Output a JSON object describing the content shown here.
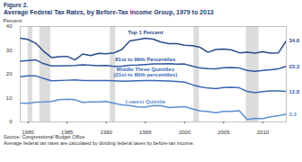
{
  "chart_data": {
    "type": "line",
    "figure": "Figure 2.",
    "title": "Average Federal Tax Rates, by Before-Tax Income Group, 1979 to 2013",
    "ylabel": "Percent",
    "source": "Source: Congressional Budget Office.",
    "note": "Average federal tax rates are calculated by dividing federal taxes by before-tax income.",
    "x": [
      1979,
      1980,
      1981,
      1982,
      1983,
      1984,
      1985,
      1986,
      1987,
      1988,
      1989,
      1990,
      1991,
      1992,
      1993,
      1994,
      1995,
      1996,
      1997,
      1998,
      1999,
      2000,
      2001,
      2002,
      2003,
      2004,
      2005,
      2006,
      2007,
      2008,
      2009,
      2010,
      2011,
      2012,
      2013
    ],
    "xlim": [
      1979,
      2013
    ],
    "xticks": [
      1980,
      1985,
      1990,
      1995,
      2000,
      2005,
      2010
    ],
    "ylim": [
      0,
      40
    ],
    "yticks": [
      0,
      10,
      20,
      30,
      40
    ],
    "grid": false,
    "shaded": [
      [
        1980,
        1980.6
      ],
      [
        1981.5,
        1982.9
      ],
      [
        1990.5,
        1991.2
      ],
      [
        2001.2,
        2001.9
      ],
      [
        2007.9,
        2009.5
      ]
    ],
    "series": [
      {
        "name": "Top 1 Percent",
        "color": "#2a4a8a",
        "end_label": "34.0",
        "values": [
          35.1,
          34.6,
          33.0,
          29.6,
          27.0,
          27.4,
          27.5,
          26.0,
          28.5,
          27.8,
          28.8,
          28.6,
          29.0,
          30.4,
          34.0,
          34.5,
          35.1,
          34.7,
          33.5,
          32.8,
          32.8,
          32.2,
          32.0,
          31.3,
          29.2,
          30.4,
          30.6,
          30.2,
          29.0,
          29.2,
          28.9,
          29.4,
          28.9,
          29.0,
          34.0
        ]
      },
      {
        "name": "81st to 99th Percentiles",
        "color": "#2f56a0",
        "end_label": "23.3",
        "values": [
          25.5,
          25.8,
          26.0,
          24.4,
          23.5,
          23.5,
          23.6,
          23.7,
          24.0,
          23.8,
          23.6,
          23.7,
          23.3,
          23.4,
          23.8,
          23.9,
          24.1,
          24.3,
          24.3,
          24.4,
          24.2,
          24.3,
          23.4,
          22.6,
          22.4,
          22.3,
          22.7,
          22.8,
          22.6,
          21.6,
          21.2,
          21.6,
          21.9,
          22.3,
          23.3
        ]
      },
      {
        "name": "Middle Three Quintiles\n(21st to 80th percentiles)",
        "color": "#3b68b5",
        "end_label": "12.8",
        "values": [
          19.0,
          19.3,
          19.3,
          18.2,
          17.3,
          17.4,
          17.5,
          17.6,
          17.4,
          17.4,
          17.4,
          17.4,
          17.3,
          17.1,
          17.2,
          17.3,
          17.4,
          17.4,
          17.3,
          17.2,
          17.0,
          16.7,
          15.6,
          14.7,
          14.2,
          14.0,
          14.4,
          14.5,
          14.3,
          12.8,
          12.3,
          12.7,
          13.0,
          13.0,
          12.8
        ]
      },
      {
        "name": "Lowest Quintile",
        "color": "#5b8fd1",
        "end_label": "3.3",
        "values": [
          7.9,
          7.8,
          8.3,
          8.4,
          8.6,
          9.3,
          9.5,
          9.3,
          8.2,
          8.4,
          8.4,
          8.6,
          7.8,
          7.2,
          6.9,
          6.3,
          6.2,
          6.9,
          6.8,
          6.0,
          6.2,
          6.4,
          5.5,
          4.6,
          4.3,
          3.9,
          4.4,
          4.4,
          4.7,
          1.0,
          1.5,
          1.4,
          2.2,
          2.6,
          3.3
        ]
      }
    ]
  }
}
